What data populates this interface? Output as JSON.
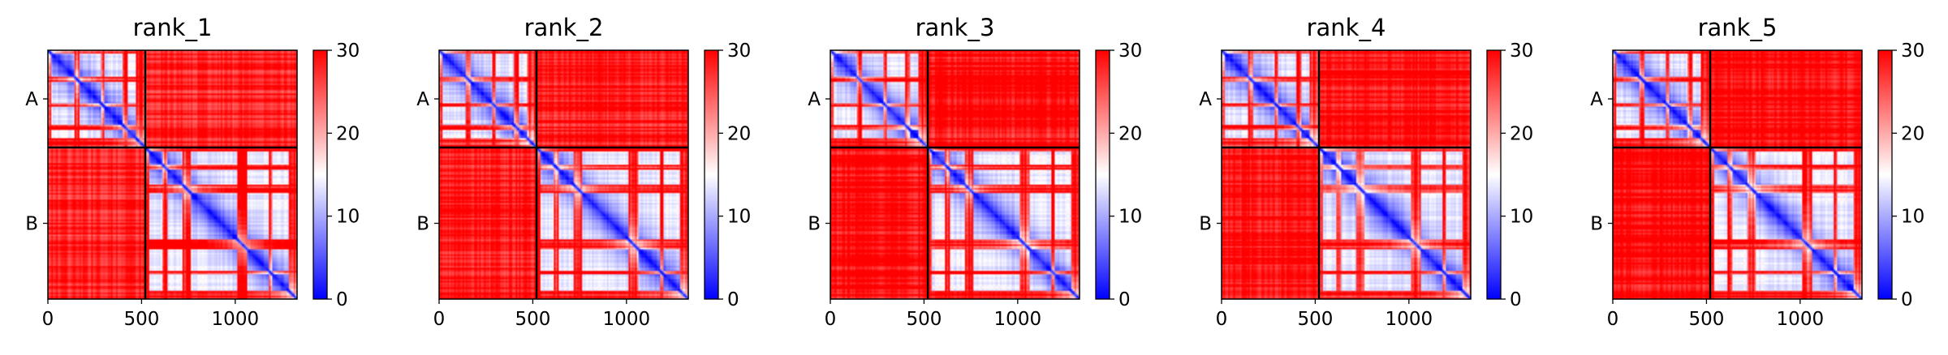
{
  "chart_data": [
    {
      "type": "heatmap",
      "title": "rank_1",
      "x_ticks": [
        "0",
        "500",
        "1000"
      ],
      "x_tick_values": [
        0,
        500,
        1000
      ],
      "xlim": [
        0,
        1330
      ],
      "chains": [
        {
          "name": "A",
          "start": 0,
          "end": 520
        },
        {
          "name": "B",
          "start": 520,
          "end": 1330
        }
      ],
      "colorbar": {
        "min": 0,
        "max": 30,
        "ticks": [
          "0",
          "10",
          "20",
          "30"
        ],
        "tick_values": [
          0,
          10,
          20,
          30
        ],
        "colors": [
          "#0000ff",
          "#ffffff",
          "#ff0000"
        ]
      },
      "offdiag_mean": 28.2
    },
    {
      "type": "heatmap",
      "title": "rank_2",
      "x_ticks": [
        "0",
        "500",
        "1000"
      ],
      "x_tick_values": [
        0,
        500,
        1000
      ],
      "xlim": [
        0,
        1330
      ],
      "chains": [
        {
          "name": "A",
          "start": 0,
          "end": 520
        },
        {
          "name": "B",
          "start": 520,
          "end": 1330
        }
      ],
      "colorbar": {
        "min": 0,
        "max": 30,
        "ticks": [
          "0",
          "10",
          "20",
          "30"
        ],
        "tick_values": [
          0,
          10,
          20,
          30
        ],
        "colors": [
          "#0000ff",
          "#ffffff",
          "#ff0000"
        ]
      },
      "offdiag_mean": 28.8
    },
    {
      "type": "heatmap",
      "title": "rank_3",
      "x_ticks": [
        "0",
        "500",
        "1000"
      ],
      "x_tick_values": [
        0,
        500,
        1000
      ],
      "xlim": [
        0,
        1330
      ],
      "chains": [
        {
          "name": "A",
          "start": 0,
          "end": 520
        },
        {
          "name": "B",
          "start": 520,
          "end": 1330
        }
      ],
      "colorbar": {
        "min": 0,
        "max": 30,
        "ticks": [
          "0",
          "10",
          "20",
          "30"
        ],
        "tick_values": [
          0,
          10,
          20,
          30
        ],
        "colors": [
          "#0000ff",
          "#ffffff",
          "#ff0000"
        ]
      },
      "offdiag_mean": 29.2
    },
    {
      "type": "heatmap",
      "title": "rank_4",
      "x_ticks": [
        "0",
        "500",
        "1000"
      ],
      "x_tick_values": [
        0,
        500,
        1000
      ],
      "xlim": [
        0,
        1330
      ],
      "chains": [
        {
          "name": "A",
          "start": 0,
          "end": 520
        },
        {
          "name": "B",
          "start": 520,
          "end": 1330
        }
      ],
      "colorbar": {
        "min": 0,
        "max": 30,
        "ticks": [
          "0",
          "10",
          "20",
          "30"
        ],
        "tick_values": [
          0,
          10,
          20,
          30
        ],
        "colors": [
          "#0000ff",
          "#ffffff",
          "#ff0000"
        ]
      },
      "offdiag_mean": 29.6
    },
    {
      "type": "heatmap",
      "title": "rank_5",
      "x_ticks": [
        "0",
        "500",
        "1000"
      ],
      "x_tick_values": [
        0,
        500,
        1000
      ],
      "xlim": [
        0,
        1330
      ],
      "chains": [
        {
          "name": "A",
          "start": 0,
          "end": 520
        },
        {
          "name": "B",
          "start": 520,
          "end": 1330
        }
      ],
      "colorbar": {
        "min": 0,
        "max": 30,
        "ticks": [
          "0",
          "10",
          "20",
          "30"
        ],
        "tick_values": [
          0,
          10,
          20,
          30
        ],
        "colors": [
          "#0000ff",
          "#ffffff",
          "#ff0000"
        ]
      },
      "offdiag_mean": 29.8
    }
  ]
}
